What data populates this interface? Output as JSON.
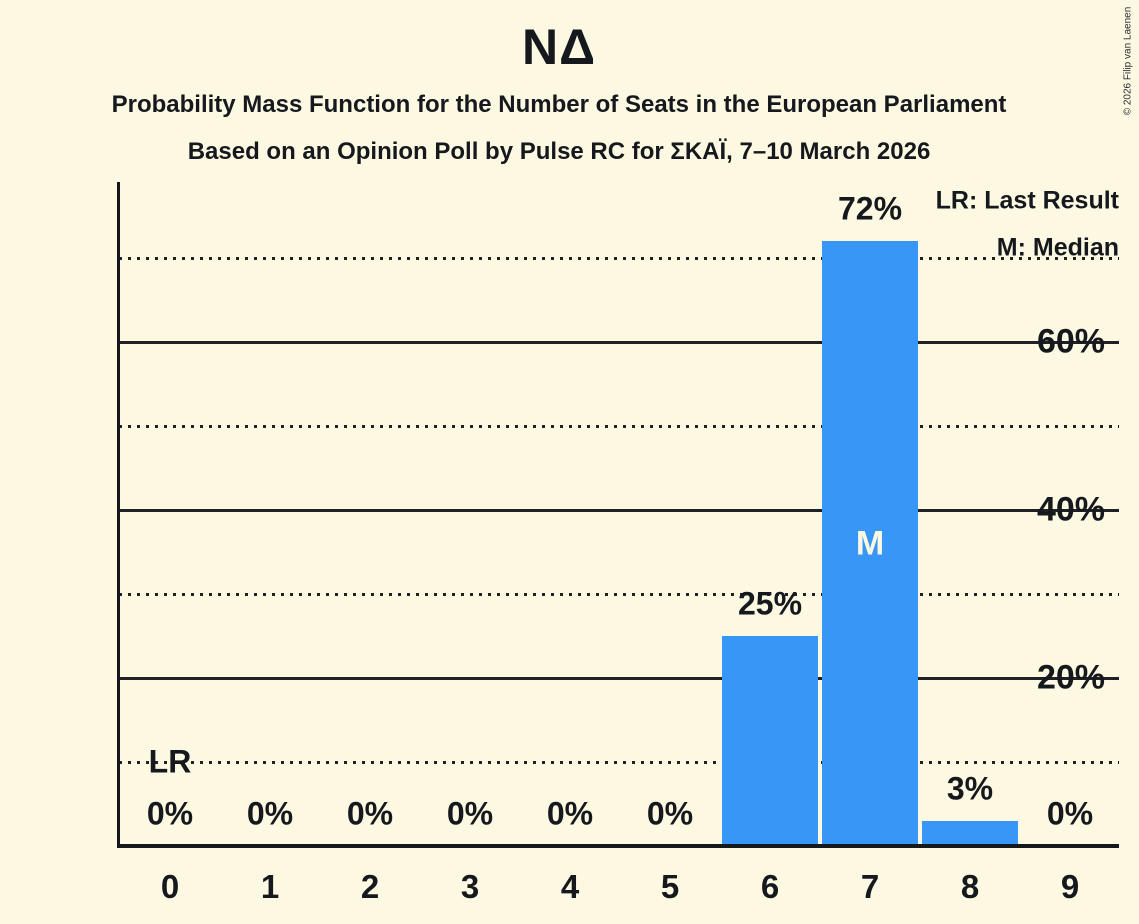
{
  "copyright": "© 2026 Filip van Laenen",
  "legend": {
    "lr_label": "LR: Last Result",
    "m_label": "M: Median"
  },
  "colors": {
    "background": "#FDF8E1",
    "bar": "#3897F6",
    "text": "#15191E"
  },
  "chart_data": {
    "type": "bar",
    "title": "ΝΔ",
    "subtitle1": "Probability Mass Function for the Number of Seats in the European Parliament",
    "subtitle2": "Based on an Opinion Poll by Pulse RC for ΣΚΑΪ, 7–10 March 2026",
    "xlabel": "",
    "ylabel": "",
    "categories": [
      "0",
      "1",
      "2",
      "3",
      "4",
      "5",
      "6",
      "7",
      "8",
      "9"
    ],
    "values": [
      0,
      0,
      0,
      0,
      0,
      0,
      25,
      72,
      3,
      0
    ],
    "value_labels": [
      "0%",
      "0%",
      "0%",
      "0%",
      "0%",
      "0%",
      "25%",
      "72%",
      "3%",
      "0%"
    ],
    "ylim": [
      0,
      79
    ],
    "yticks": [
      {
        "value": 20,
        "label": "20%"
      },
      {
        "value": 40,
        "label": "40%"
      },
      {
        "value": 60,
        "label": "60%"
      }
    ],
    "minor_gridlines": [
      10,
      30,
      50,
      70
    ],
    "grid": "horizontal",
    "legend_position": "top-right",
    "annotations": {
      "last_result": {
        "seat": "0",
        "label": "LR",
        "y_percent": 10
      },
      "median": {
        "seat": "7",
        "label": "M"
      }
    }
  }
}
